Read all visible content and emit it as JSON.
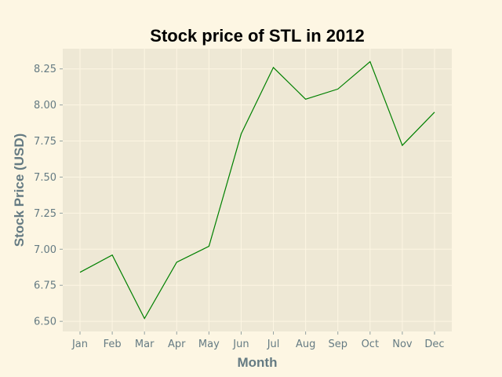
{
  "chart_data": {
    "type": "line",
    "title": "Stock price of STL in 2012",
    "xlabel": "Month",
    "ylabel": "Stock Price (USD)",
    "categories": [
      "Jan",
      "Feb",
      "Mar",
      "Apr",
      "May",
      "Jun",
      "Jul",
      "Aug",
      "Sep",
      "Oct",
      "Nov",
      "Dec"
    ],
    "series": [
      {
        "values": [
          6.84,
          6.96,
          6.52,
          6.91,
          7.02,
          7.8,
          8.26,
          8.04,
          8.11,
          8.3,
          7.72,
          7.95
        ]
      }
    ],
    "yticks": [
      "6.50",
      "6.75",
      "7.00",
      "7.25",
      "7.50",
      "7.75",
      "8.00",
      "8.25"
    ],
    "ylim": [
      6.43,
      8.39
    ],
    "grid": true,
    "colors": {
      "background": "#fdf6e3",
      "plot_area": "#eee8d5",
      "grid": "#fdf6e3",
      "line": "#008000",
      "tick_text": "#657b83",
      "title": "#000000"
    }
  }
}
